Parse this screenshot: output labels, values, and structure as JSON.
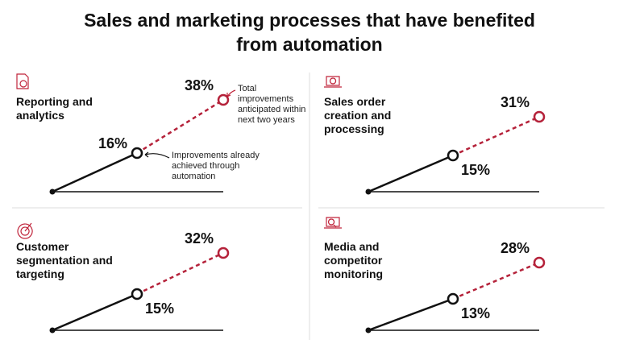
{
  "title": "Sales and marketing processes that have benefited from automation",
  "annotations": [
    "Total improvements anticipated within next two years",
    "Improvements already achieved through automation"
  ],
  "chart_data": [
    {
      "type": "line",
      "title": "Reporting and analytics",
      "values": [
        16,
        38
      ],
      "value_labels": [
        "16%",
        "38%"
      ],
      "colors": [
        "#111111",
        "#b5223a"
      ],
      "ylim": [
        0,
        40
      ]
    },
    {
      "type": "line",
      "title": "Sales order creation and processing",
      "values": [
        15,
        31
      ],
      "value_labels": [
        "15%",
        "31%"
      ],
      "colors": [
        "#111111",
        "#b5223a"
      ],
      "ylim": [
        0,
        40
      ]
    },
    {
      "type": "line",
      "title": "Customer segmentation and targeting",
      "values": [
        15,
        32
      ],
      "value_labels": [
        "15%",
        "32%"
      ],
      "colors": [
        "#111111",
        "#b5223a"
      ],
      "ylim": [
        0,
        40
      ]
    },
    {
      "type": "line",
      "title": "Media and competitor monitoring",
      "values": [
        13,
        28
      ],
      "value_labels": [
        "13%",
        "28%"
      ],
      "colors": [
        "#111111",
        "#b5223a"
      ],
      "ylim": [
        0,
        40
      ]
    }
  ]
}
